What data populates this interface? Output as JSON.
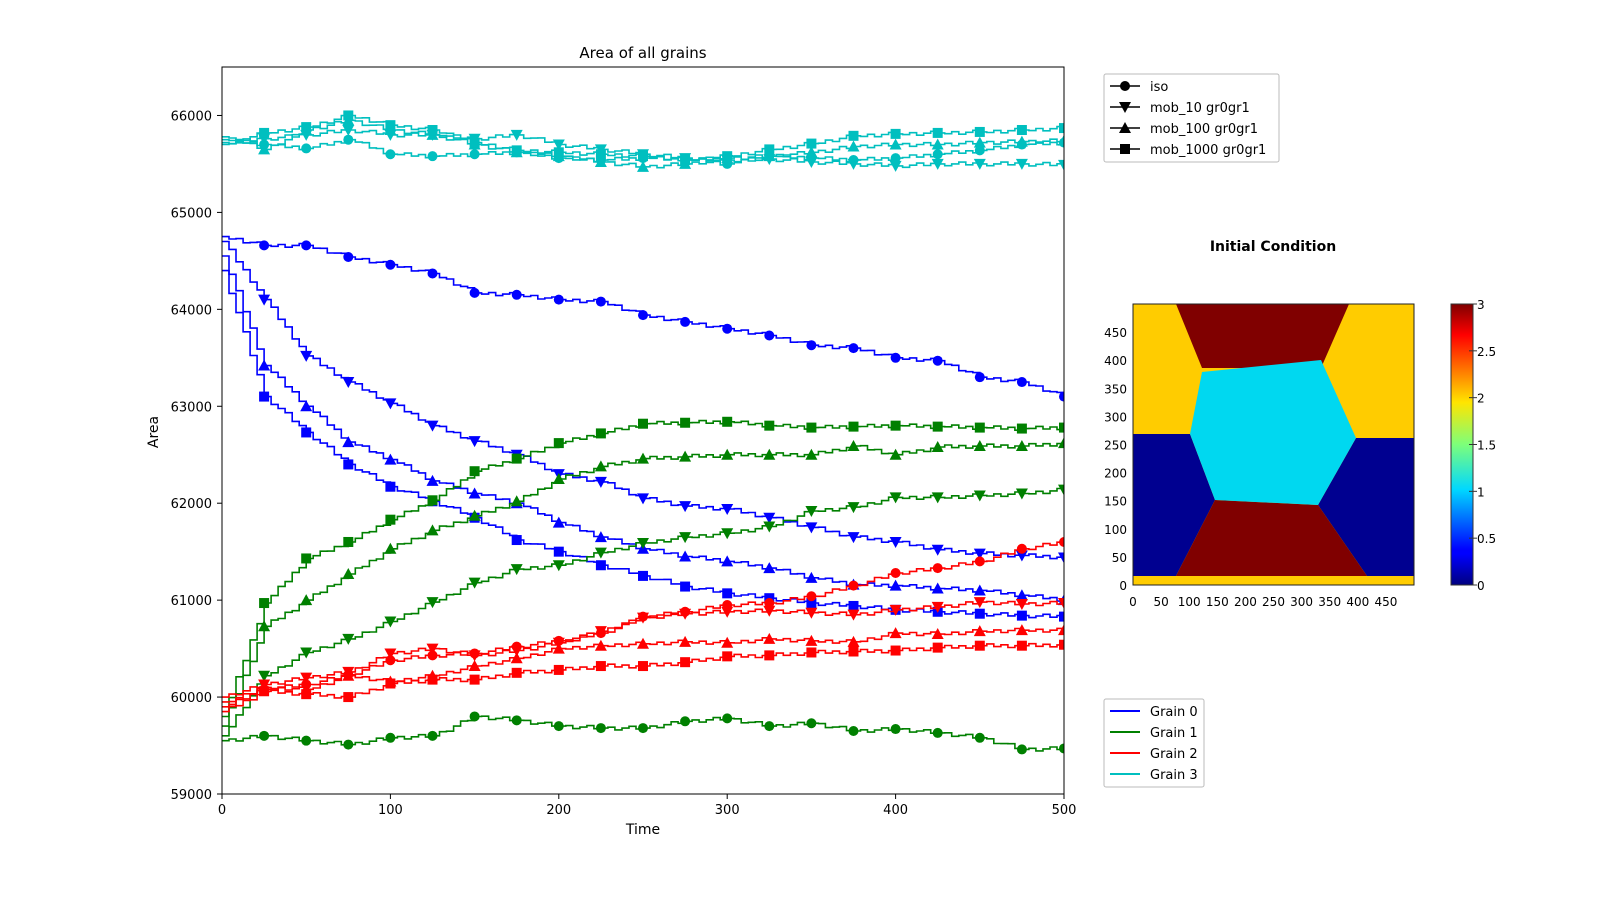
{
  "chart_data": [
    {
      "type": "line",
      "title": "Area of all grains",
      "xlabel": "Time",
      "ylabel": "Area",
      "xlim": [
        0,
        500
      ],
      "ylim": [
        59000,
        66500
      ],
      "xticks": [
        "0",
        "100",
        "200",
        "300",
        "400",
        "500"
      ],
      "yticks": [
        "59000",
        "60000",
        "61000",
        "62000",
        "63000",
        "64000",
        "65000",
        "66000"
      ],
      "grid": false,
      "marker_legend": {
        "placement": "top-right-outside",
        "entries": [
          {
            "label": "iso",
            "marker": "circle"
          },
          {
            "label": "mob_10 gr0gr1",
            "marker": "triangle-down"
          },
          {
            "label": "mob_100 gr0gr1",
            "marker": "triangle-up"
          },
          {
            "label": "mob_1000 gr0gr1",
            "marker": "square"
          }
        ]
      },
      "color_legend": {
        "placement": "bottom-right-outside",
        "entries": [
          {
            "label": "Grain 0",
            "color": "#0000ff"
          },
          {
            "label": "Grain 1",
            "color": "#008000"
          },
          {
            "label": "Grain 2",
            "color": "#ff0000"
          },
          {
            "label": "Grain 3",
            "color": "#00bfbf"
          }
        ]
      },
      "series": [
        {
          "grain": 0,
          "marker": "circle",
          "x": [
            0,
            25,
            50,
            75,
            100,
            125,
            150,
            175,
            200,
            225,
            250,
            275,
            300,
            325,
            350,
            375,
            400,
            425,
            450,
            475,
            500
          ],
          "y": [
            64750,
            64660,
            64660,
            64540,
            64460,
            64370,
            64170,
            64150,
            64100,
            64080,
            63940,
            63870,
            63800,
            63730,
            63630,
            63600,
            63500,
            63470,
            63300,
            63250,
            63100
          ]
        },
        {
          "grain": 0,
          "marker": "triangle-down",
          "x": [
            0,
            25,
            50,
            75,
            100,
            125,
            150,
            175,
            200,
            225,
            250,
            275,
            300,
            325,
            350,
            375,
            400,
            425,
            450,
            475,
            500
          ],
          "y": [
            64700,
            64100,
            63520,
            63250,
            63030,
            62800,
            62640,
            62500,
            62300,
            62220,
            62050,
            61970,
            61940,
            61850,
            61750,
            61650,
            61600,
            61520,
            61480,
            61460,
            61440
          ]
        },
        {
          "grain": 0,
          "marker": "triangle-up",
          "x": [
            0,
            25,
            50,
            75,
            100,
            125,
            150,
            175,
            200,
            225,
            250,
            275,
            300,
            325,
            350,
            375,
            400,
            425,
            450,
            475,
            500
          ],
          "y": [
            64550,
            63420,
            63000,
            62630,
            62450,
            62230,
            62100,
            62000,
            61800,
            61650,
            61530,
            61450,
            61400,
            61330,
            61230,
            61160,
            61150,
            61120,
            61100,
            61050,
            61000
          ]
        },
        {
          "grain": 0,
          "marker": "square",
          "x": [
            0,
            25,
            50,
            75,
            100,
            125,
            150,
            175,
            200,
            225,
            250,
            275,
            300,
            325,
            350,
            375,
            400,
            425,
            450,
            475,
            500
          ],
          "y": [
            64400,
            63100,
            62730,
            62400,
            62170,
            62020,
            61850,
            61620,
            61500,
            61360,
            61250,
            61140,
            61070,
            61020,
            60970,
            60940,
            60900,
            60880,
            60860,
            60840,
            60830
          ]
        },
        {
          "grain": 1,
          "marker": "circle",
          "x": [
            0,
            25,
            50,
            75,
            100,
            125,
            150,
            175,
            200,
            225,
            250,
            275,
            300,
            325,
            350,
            375,
            400,
            425,
            450,
            475,
            500
          ],
          "y": [
            59550,
            59600,
            59550,
            59510,
            59580,
            59600,
            59800,
            59760,
            59700,
            59680,
            59680,
            59750,
            59780,
            59700,
            59730,
            59650,
            59670,
            59630,
            59580,
            59460,
            59470
          ]
        },
        {
          "grain": 1,
          "marker": "triangle-down",
          "x": [
            0,
            25,
            50,
            75,
            100,
            125,
            150,
            175,
            200,
            225,
            250,
            275,
            300,
            325,
            350,
            375,
            400,
            425,
            450,
            475,
            500
          ],
          "y": [
            59600,
            60220,
            60460,
            60600,
            60780,
            60980,
            61180,
            61320,
            61360,
            61490,
            61590,
            61650,
            61690,
            61760,
            61920,
            61960,
            62060,
            62060,
            62080,
            62100,
            62140
          ]
        },
        {
          "grain": 1,
          "marker": "triangle-up",
          "x": [
            0,
            25,
            50,
            75,
            100,
            125,
            150,
            175,
            200,
            225,
            250,
            275,
            300,
            325,
            350,
            375,
            400,
            425,
            450,
            475,
            500
          ],
          "y": [
            59700,
            60730,
            61000,
            61270,
            61530,
            61720,
            61870,
            62020,
            62250,
            62380,
            62460,
            62480,
            62500,
            62500,
            62500,
            62590,
            62500,
            62580,
            62590,
            62590,
            62620
          ]
        },
        {
          "grain": 1,
          "marker": "square",
          "x": [
            0,
            25,
            50,
            75,
            100,
            125,
            150,
            175,
            200,
            225,
            250,
            275,
            300,
            325,
            350,
            375,
            400,
            425,
            450,
            475,
            500
          ],
          "y": [
            59800,
            60970,
            61430,
            61600,
            61830,
            62030,
            62330,
            62460,
            62620,
            62720,
            62820,
            62830,
            62840,
            62800,
            62780,
            62790,
            62800,
            62790,
            62780,
            62770,
            62780
          ]
        },
        {
          "grain": 2,
          "marker": "circle",
          "x": [
            0,
            25,
            50,
            75,
            100,
            125,
            150,
            175,
            200,
            225,
            250,
            275,
            300,
            325,
            350,
            375,
            400,
            425,
            450,
            475,
            500
          ],
          "y": [
            59950,
            60080,
            60130,
            60230,
            60380,
            60430,
            60450,
            60520,
            60580,
            60660,
            60830,
            60880,
            60950,
            60970,
            61040,
            61150,
            61280,
            61330,
            61400,
            61530,
            61600
          ]
        },
        {
          "grain": 2,
          "marker": "triangle-down",
          "x": [
            0,
            25,
            50,
            75,
            100,
            125,
            150,
            175,
            200,
            225,
            250,
            275,
            300,
            325,
            350,
            375,
            400,
            425,
            450,
            475,
            500
          ],
          "y": [
            60000,
            60130,
            60200,
            60260,
            60450,
            60500,
            60430,
            60480,
            60560,
            60680,
            60820,
            60860,
            60880,
            60890,
            60870,
            60850,
            60900,
            60930,
            60980,
            60960,
            60970
          ]
        },
        {
          "grain": 2,
          "marker": "triangle-up",
          "x": [
            0,
            25,
            50,
            75,
            100,
            125,
            150,
            175,
            200,
            225,
            250,
            275,
            300,
            325,
            350,
            375,
            400,
            425,
            450,
            475,
            500
          ],
          "y": [
            59900,
            60100,
            60080,
            60220,
            60160,
            60220,
            60320,
            60400,
            60500,
            60530,
            60550,
            60570,
            60560,
            60600,
            60580,
            60570,
            60660,
            60650,
            60680,
            60690,
            60690
          ]
        },
        {
          "grain": 2,
          "marker": "square",
          "x": [
            0,
            25,
            50,
            75,
            100,
            125,
            150,
            175,
            200,
            225,
            250,
            275,
            300,
            325,
            350,
            375,
            400,
            425,
            450,
            475,
            500
          ],
          "y": [
            59850,
            60060,
            60030,
            60000,
            60140,
            60180,
            60180,
            60250,
            60280,
            60320,
            60320,
            60360,
            60420,
            60430,
            60460,
            60470,
            60480,
            60510,
            60530,
            60530,
            60540
          ]
        },
        {
          "grain": 3,
          "marker": "circle",
          "x": [
            0,
            25,
            50,
            75,
            100,
            125,
            150,
            175,
            200,
            225,
            250,
            275,
            300,
            325,
            350,
            375,
            400,
            425,
            450,
            475,
            500
          ],
          "y": [
            65750,
            65700,
            65660,
            65750,
            65600,
            65580,
            65600,
            65620,
            65560,
            65540,
            65560,
            65550,
            65500,
            65580,
            65560,
            65540,
            65560,
            65600,
            65640,
            65700,
            65720
          ]
        },
        {
          "grain": 3,
          "marker": "triangle-down",
          "x": [
            0,
            25,
            50,
            75,
            100,
            125,
            150,
            175,
            200,
            225,
            250,
            275,
            300,
            325,
            350,
            375,
            400,
            425,
            450,
            475,
            500
          ],
          "y": [
            65720,
            65760,
            65800,
            65850,
            65800,
            65800,
            65760,
            65800,
            65700,
            65650,
            65600,
            65560,
            65540,
            65550,
            65520,
            65500,
            65480,
            65500,
            65500,
            65500,
            65490
          ]
        },
        {
          "grain": 3,
          "marker": "triangle-up",
          "x": [
            0,
            25,
            50,
            75,
            100,
            125,
            150,
            175,
            200,
            225,
            250,
            275,
            300,
            325,
            350,
            375,
            400,
            425,
            450,
            475,
            500
          ],
          "y": [
            65780,
            65650,
            65850,
            65950,
            65850,
            65800,
            65700,
            65620,
            65580,
            65520,
            65470,
            65500,
            65560,
            65580,
            65620,
            65680,
            65700,
            65700,
            65720,
            65730,
            65740
          ]
        },
        {
          "grain": 3,
          "marker": "square",
          "x": [
            0,
            25,
            50,
            75,
            100,
            125,
            150,
            175,
            200,
            225,
            250,
            275,
            300,
            325,
            350,
            375,
            400,
            425,
            450,
            475,
            500
          ],
          "y": [
            65700,
            65820,
            65880,
            66000,
            65900,
            65850,
            65720,
            65640,
            65620,
            65600,
            65580,
            65540,
            65580,
            65650,
            65710,
            65790,
            65810,
            65820,
            65830,
            65850,
            65870
          ]
        }
      ]
    },
    {
      "type": "heatmap",
      "title": "Initial Condition",
      "xticks": [
        "0",
        "50",
        "100",
        "150",
        "200",
        "250",
        "300",
        "350",
        "400",
        "450"
      ],
      "yticks": [
        "0",
        "50",
        "100",
        "150",
        "200",
        "250",
        "300",
        "350",
        "400",
        "450"
      ],
      "xlim": [
        0,
        500
      ],
      "ylim": [
        0,
        500
      ],
      "colorbar": {
        "range": [
          0,
          3
        ],
        "ticks": [
          "0",
          "0.5",
          "1",
          "1.5",
          "2",
          "2.5",
          "3"
        ]
      },
      "regions": [
        {
          "value": 2.0,
          "label": "outer top-left / top-right / bottom strip",
          "color": "#ffcc00"
        },
        {
          "value": 3.0,
          "label": "top and bottom wedges",
          "color": "#800000"
        },
        {
          "value": 1.1,
          "label": "central hexagon",
          "color": "#00d8f0"
        },
        {
          "value": 0.0,
          "label": "left and right blocks",
          "color": "#000090"
        }
      ]
    }
  ]
}
